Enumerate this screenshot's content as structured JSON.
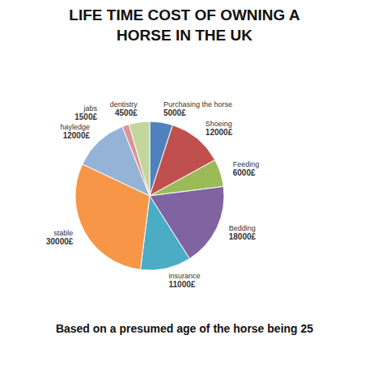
{
  "chart_data": {
    "type": "pie",
    "title": "LIFE TIME COST OF OWNING A HORSE IN THE UK",
    "subtitle": "Based on a presumed age of the horse being 25",
    "categories": [
      "Purchasing the horse",
      "Shoeing",
      "Feeding",
      "Bedding",
      "insurance",
      "stable",
      "hayledge",
      "jabs",
      "dentistry"
    ],
    "values": [
      5000,
      12000,
      6000,
      18000,
      11000,
      30000,
      12000,
      1500,
      4500
    ],
    "value_labels": [
      "5000£",
      "12000£",
      "6000£",
      "18000£",
      "11000£",
      "30000£",
      "12000£",
      "1500£",
      "4500£"
    ],
    "colors": [
      "#4f81bd",
      "#c0504d",
      "#9bbb59",
      "#8064a2",
      "#4bacc6",
      "#f79646",
      "#95b3d7",
      "#d99694",
      "#c3d69b"
    ],
    "data_labels": true
  }
}
